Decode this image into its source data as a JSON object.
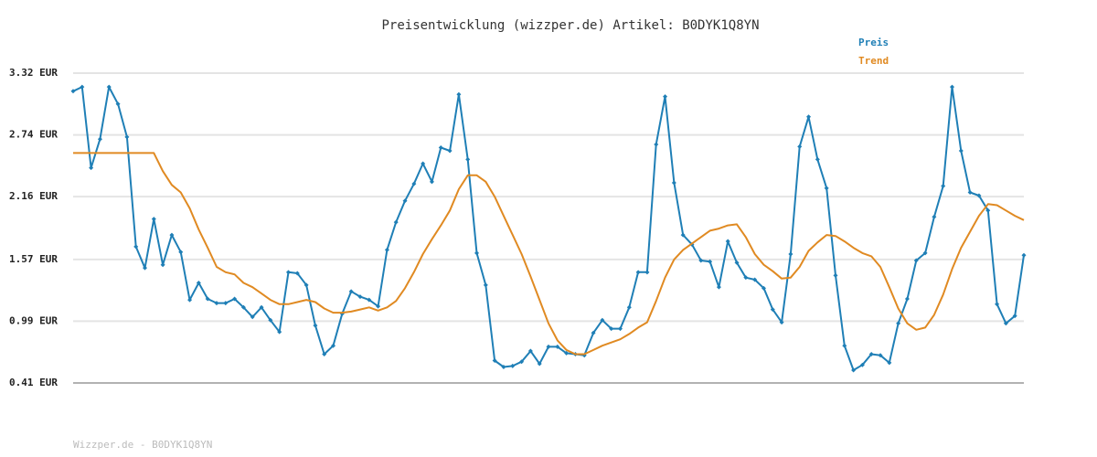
{
  "chart_data": {
    "type": "line",
    "title": "Preisentwicklung (wizzper.de) Artikel: B0DYK1Q8YN",
    "ylim": [
      0.41,
      3.32
    ],
    "yticks": [
      {
        "value": 0.41,
        "label": "0.41 EUR"
      },
      {
        "value": 0.99,
        "label": "0.99 EUR"
      },
      {
        "value": 1.57,
        "label": "1.57 EUR"
      },
      {
        "value": 2.16,
        "label": "2.16 EUR"
      },
      {
        "value": 2.74,
        "label": "2.74 EUR"
      },
      {
        "value": 3.32,
        "label": "3.32 EUR"
      }
    ],
    "grid": true,
    "legend": "top-right",
    "series": [
      {
        "name": "Preis",
        "color": "#1f7fb6",
        "markers": true,
        "values": [
          3.15,
          3.19,
          2.43,
          2.7,
          3.19,
          3.03,
          2.72,
          1.69,
          1.49,
          1.95,
          1.52,
          1.8,
          1.64,
          1.19,
          1.35,
          1.2,
          1.16,
          1.16,
          1.2,
          1.12,
          1.03,
          1.12,
          1.0,
          0.89,
          1.45,
          1.44,
          1.33,
          0.95,
          0.68,
          0.76,
          1.06,
          1.27,
          1.22,
          1.19,
          1.13,
          1.66,
          1.92,
          2.12,
          2.28,
          2.47,
          2.3,
          2.62,
          2.59,
          3.12,
          2.51,
          1.63,
          1.33,
          0.62,
          0.56,
          0.57,
          0.61,
          0.71,
          0.59,
          0.75,
          0.75,
          0.69,
          0.68,
          0.67,
          0.88,
          1.0,
          0.92,
          0.92,
          1.12,
          1.45,
          1.45,
          2.65,
          3.1,
          2.29,
          1.8,
          1.71,
          1.56,
          1.55,
          1.31,
          1.74,
          1.54,
          1.4,
          1.38,
          1.3,
          1.1,
          0.98,
          1.62,
          2.63,
          2.91,
          2.51,
          2.24,
          1.42,
          0.76,
          0.53,
          0.58,
          0.68,
          0.67,
          0.6,
          0.97,
          1.2,
          1.56,
          1.63,
          1.97,
          2.26,
          3.19,
          2.59,
          2.2,
          2.17,
          2.03,
          1.15,
          0.97,
          1.04,
          1.61
        ]
      },
      {
        "name": "Trend",
        "color": "#e08a22",
        "markers": false,
        "values": [
          2.57,
          2.57,
          2.57,
          2.57,
          2.57,
          2.57,
          2.57,
          2.57,
          2.57,
          2.57,
          2.4,
          2.27,
          2.2,
          2.05,
          1.85,
          1.68,
          1.5,
          1.45,
          1.43,
          1.35,
          1.31,
          1.25,
          1.19,
          1.15,
          1.15,
          1.17,
          1.19,
          1.17,
          1.11,
          1.07,
          1.07,
          1.08,
          1.1,
          1.12,
          1.09,
          1.12,
          1.18,
          1.3,
          1.45,
          1.62,
          1.76,
          1.89,
          2.03,
          2.23,
          2.36,
          2.36,
          2.3,
          2.16,
          1.98,
          1.8,
          1.62,
          1.41,
          1.19,
          0.97,
          0.81,
          0.72,
          0.68,
          0.68,
          0.72,
          0.76,
          0.79,
          0.82,
          0.87,
          0.93,
          0.98,
          1.18,
          1.4,
          1.57,
          1.66,
          1.72,
          1.78,
          1.84,
          1.86,
          1.89,
          1.9,
          1.78,
          1.62,
          1.52,
          1.46,
          1.39,
          1.4,
          1.5,
          1.65,
          1.73,
          1.8,
          1.79,
          1.74,
          1.68,
          1.63,
          1.6,
          1.5,
          1.31,
          1.11,
          0.97,
          0.91,
          0.93,
          1.05,
          1.24,
          1.48,
          1.68,
          1.83,
          1.98,
          2.09,
          2.08,
          2.03,
          1.98,
          1.94
        ]
      }
    ]
  },
  "footer": "Wizzper.de - B0DYK1Q8YN"
}
